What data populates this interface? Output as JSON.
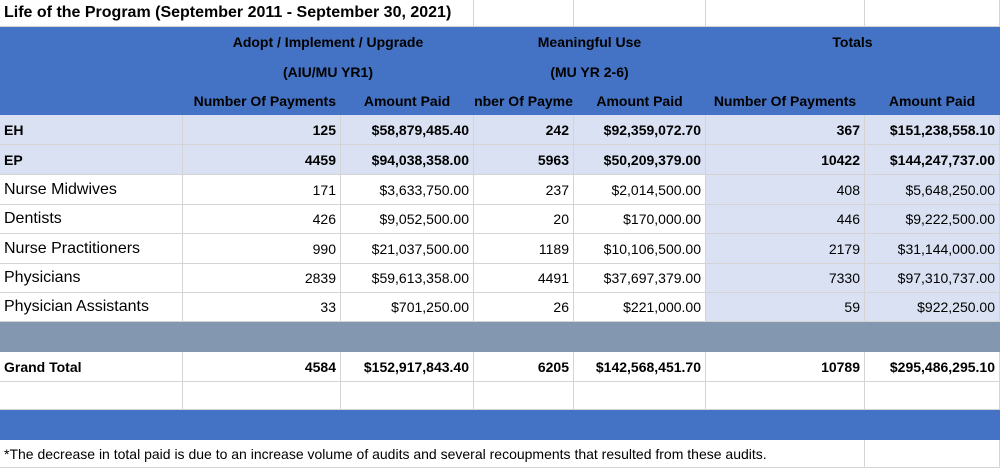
{
  "title": "Life of the Program (September 2011 - September 30, 2021)",
  "headers": {
    "aiu_group": "Adopt / Implement / Upgrade",
    "aiu_sub": "(AIU/MU YR1)",
    "mu_group": "Meaningful Use",
    "mu_sub": "(MU YR 2-6)",
    "totals_group": "Totals",
    "num_payments": "Number Of Payments",
    "amount_paid": "Amount Paid",
    "num_payments_clipped": "nber Of Payme",
    "amount_paid_mu": "Amount Paid",
    "num_payments_tot": "Number Of Payments",
    "amount_paid_tot": "Amount Paid"
  },
  "rows": [
    {
      "label": "EH",
      "aiu_num": "125",
      "aiu_amt": "$58,879,485.40",
      "mu_num": "242",
      "mu_amt": "$92,359,072.70",
      "tot_num": "367",
      "tot_amt": "$151,238,558.10"
    },
    {
      "label": "EP",
      "aiu_num": "4459",
      "aiu_amt": "$94,038,358.00",
      "mu_num": "5963",
      "mu_amt": "$50,209,379.00",
      "tot_num": "10422",
      "tot_amt": "$144,247,737.00"
    },
    {
      "label": "Nurse Midwives",
      "aiu_num": "171",
      "aiu_amt": "$3,633,750.00",
      "mu_num": "237",
      "mu_amt": "$2,014,500.00",
      "tot_num": "408",
      "tot_amt": "$5,648,250.00"
    },
    {
      "label": "Dentists",
      "aiu_num": "426",
      "aiu_amt": "$9,052,500.00",
      "mu_num": "20",
      "mu_amt": "$170,000.00",
      "tot_num": "446",
      "tot_amt": "$9,222,500.00"
    },
    {
      "label": "Nurse Practitioners",
      "aiu_num": "990",
      "aiu_amt": "$21,037,500.00",
      "mu_num": "1189",
      "mu_amt": "$10,106,500.00",
      "tot_num": "2179",
      "tot_amt": "$31,144,000.00"
    },
    {
      "label": "Physicians",
      "aiu_num": "2839",
      "aiu_amt": "$59,613,358.00",
      "mu_num": "4491",
      "mu_amt": "$37,697,379.00",
      "tot_num": "7330",
      "tot_amt": "$97,310,737.00"
    },
    {
      "label": "Physician Assistants",
      "aiu_num": "33",
      "aiu_amt": "$701,250.00",
      "mu_num": "26",
      "mu_amt": "$221,000.00",
      "tot_num": "59",
      "tot_amt": "$922,250.00"
    }
  ],
  "grand_total": {
    "label": "Grand Total",
    "aiu_num": "4584",
    "aiu_amt": "$152,917,843.40",
    "mu_num": "6205",
    "mu_amt": "$142,568,451.70",
    "tot_num": "10789",
    "tot_amt": "$295,486,295.10"
  },
  "footnote": "*The decrease in total paid is due to an increase volume of audits and several recoupments that resulted from these audits.",
  "colors": {
    "header_blue": "#4472c4",
    "lavender": "#d9e1f2",
    "grey_band": "#8497b0"
  }
}
